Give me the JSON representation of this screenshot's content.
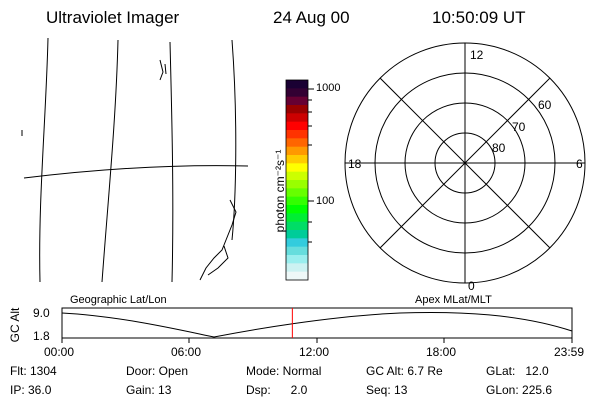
{
  "header": {
    "instrument": "Ultraviolet Imager",
    "date": "24 Aug 00",
    "time": "10:50:09 UT"
  },
  "colorbar": {
    "unit_label": "photon cm⁻²s⁻¹",
    "tick_1000": "1000",
    "tick_100": "100",
    "colors_top_to_bottom": [
      "#1a0033",
      "#330033",
      "#660033",
      "#990000",
      "#cc0000",
      "#ff0000",
      "#ff3300",
      "#ff6600",
      "#ff9900",
      "#ffcc00",
      "#ffff00",
      "#ccff00",
      "#99ff00",
      "#66ff00",
      "#33ff00",
      "#00ff00",
      "#00ee33",
      "#00dd66",
      "#00cc99",
      "#33ccdd",
      "#66dddd",
      "#99eeee",
      "#ccf2f2",
      "#eef8f8"
    ]
  },
  "polar_plot": {
    "mlt_labels": {
      "top": "12",
      "right": "6",
      "bottom": "0",
      "left": "18"
    },
    "lat_labels": [
      "60",
      "70",
      "80"
    ]
  },
  "timeline": {
    "left_title": "Geographic Lat/Lon",
    "right_title": "Apex MLat/MLT",
    "axis_label": "GC Alt",
    "y_labels": [
      "9.0",
      "1.8"
    ],
    "x_labels": [
      "00:00",
      "06:00",
      "12:00",
      "18:00",
      "23:59"
    ],
    "current_time_marker_hours": 10.84,
    "marker_color": "#ff0000"
  },
  "info": {
    "flt": "Flt: 1304",
    "ip": "IP: 36.0",
    "door": "Door: Open",
    "gain": "Gain: 13",
    "mode": "Mode: Normal",
    "dsp": "Dsp:      2.0",
    "gcalt": "GC Alt: 6.7 Re",
    "seq": "Seq: 13",
    "glat": "GLat:   12.0",
    "glon": "GLon: 225.6"
  }
}
